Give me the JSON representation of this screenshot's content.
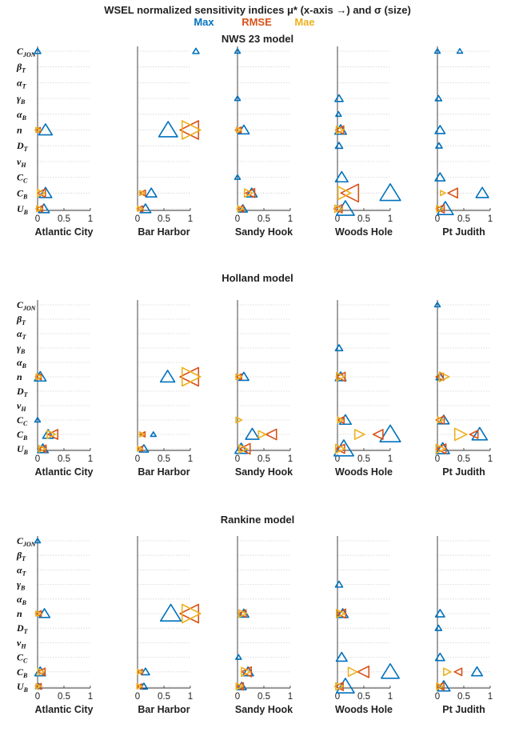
{
  "title": {
    "main": "WSEL normalized sensitivity indices μ* (x-axis →) and σ (size)",
    "legend": [
      {
        "label": "Max",
        "color": "#0072BD"
      },
      {
        "label": "RMSE",
        "color": "#D95319"
      },
      {
        "label": "Mae",
        "color": "#EDB120"
      }
    ]
  },
  "chart_data": {
    "type": "scatter",
    "parameters": [
      {
        "base": "C",
        "sub": "JON"
      },
      {
        "base": "β",
        "sub": "T"
      },
      {
        "base": "α",
        "sub": "T"
      },
      {
        "base": "γ",
        "sub": "B"
      },
      {
        "base": "α",
        "sub": "B"
      },
      {
        "base": "n",
        "sub": ""
      },
      {
        "base": "D",
        "sub": "T"
      },
      {
        "base": "ν",
        "sub": "H"
      },
      {
        "base": "C",
        "sub": "C"
      },
      {
        "base": "C",
        "sub": "B"
      },
      {
        "base": "U",
        "sub": "B"
      }
    ],
    "xlim": [
      0,
      1
    ],
    "xticks": [
      "0",
      "0.5",
      "1"
    ],
    "grid": "horizontal dotted",
    "sites": [
      "Atlantic City",
      "Bar Harbor",
      "Sandy Hook",
      "Woods Hole",
      "Pt Judith"
    ],
    "models": [
      {
        "title": "NWS 23 model",
        "panels": [
          {
            "Max": [
              [
                0,
                0,
                0.2
              ],
              [
                0,
                3,
                0.2
              ],
              [
                0,
                8,
                0.15
              ],
              [
                5,
                0.15,
                0.6
              ],
              [
                9,
                0.15,
                0.55
              ],
              [
                10,
                0.12,
                0.45
              ]
            ],
            "RMSE": [
              [
                5,
                0.01,
                0.15
              ],
              [
                9,
                0.08,
                0.35
              ],
              [
                10,
                0.04,
                0.25
              ]
            ],
            "Mae": [
              [
                5,
                0.01,
                0.15
              ],
              [
                9,
                0.06,
                0.3
              ],
              [
                10,
                0.03,
                0.2
              ]
            ]
          },
          {
            "Max": [
              [
                5,
                0.58,
                0.9
              ],
              [
                9,
                0.26,
                0.45
              ],
              [
                10,
                0.15,
                0.45
              ]
            ],
            "RMSE": [
              [
                5,
                1.0,
                1.0
              ],
              [
                9,
                0.1,
                0.2
              ],
              [
                10,
                0.05,
                0.2
              ]
            ],
            "Mae": [
              [
                5,
                1.0,
                1.0
              ],
              [
                9,
                0.08,
                0.15
              ],
              [
                10,
                0.04,
                0.15
              ]
            ]
          },
          {
            "Max": [
              [
                0,
                0,
                0.15
              ],
              [
                3,
                0,
                0.15
              ],
              [
                5,
                0.12,
                0.45
              ],
              [
                8,
                0,
                0.15
              ],
              [
                9,
                0.27,
                0.45
              ],
              [
                10,
                0.1,
                0.35
              ]
            ],
            "RMSE": [
              [
                5,
                0.02,
                0.2
              ],
              [
                9,
                0.25,
                0.4
              ],
              [
                10,
                0.06,
                0.25
              ]
            ],
            "Mae": [
              [
                5,
                0.02,
                0.15
              ],
              [
                9,
                0.2,
                0.35
              ],
              [
                10,
                0.05,
                0.2
              ]
            ]
          },
          {
            "Max": [
              [
                3,
                0.03,
                0.3
              ],
              [
                4,
                0.02,
                0.15
              ],
              [
                5,
                0.06,
                0.5
              ],
              [
                6,
                0.03,
                0.25
              ],
              [
                8,
                0.08,
                0.55
              ],
              [
                9,
                1.0,
                1.0
              ],
              [
                10,
                0.15,
                0.85
              ]
            ],
            "RMSE": [
              [
                5,
                0.05,
                0.35
              ],
              [
                9,
                0.25,
                0.95
              ],
              [
                10,
                0.02,
                0.35
              ]
            ],
            "Mae": [
              [
                5,
                0.04,
                0.3
              ],
              [
                9,
                0.12,
                0.65
              ],
              [
                10,
                0.01,
                0.3
              ]
            ]
          },
          {
            "Max": [
              [
                0,
                0,
                0.15
              ],
              [
                3,
                0.02,
                0.2
              ],
              [
                5,
                0.05,
                0.4
              ],
              [
                6,
                0.03,
                0.2
              ],
              [
                8,
                0.05,
                0.4
              ],
              [
                9,
                0.85,
                0.55
              ],
              [
                10,
                0.15,
                0.75
              ]
            ],
            "RMSE": [
              [
                9,
                0.3,
                0.45
              ],
              [
                10,
                0.06,
                0.35
              ]
            ],
            "Mae": [
              [
                9,
                0.1,
                0.15
              ],
              [
                10,
                0.04,
                0.25
              ]
            ]
          }
        ]
      },
      {
        "title": "Holland model",
        "panels": [
          {
            "Max": [
              [
                5,
                0.05,
                0.5
              ],
              [
                8,
                0,
                0.15
              ],
              [
                9,
                0.2,
                0.45
              ],
              [
                10,
                0.1,
                0.45
              ]
            ],
            "RMSE": [
              [
                5,
                0.02,
                0.2
              ],
              [
                9,
                0.3,
                0.45
              ],
              [
                10,
                0.1,
                0.3
              ]
            ],
            "Mae": [
              [
                5,
                0.02,
                0.2
              ],
              [
                9,
                0.25,
                0.35
              ],
              [
                10,
                0.08,
                0.25
              ]
            ]
          },
          {
            "Max": [
              [
                5,
                0.57,
                0.65
              ],
              [
                9,
                0.3,
                0.15
              ],
              [
                10,
                0.12,
                0.35
              ]
            ],
            "RMSE": [
              [
                5,
                1.0,
                1.0
              ],
              [
                9,
                0.1,
                0.15
              ],
              [
                10,
                0.05,
                0.15
              ]
            ],
            "Mae": [
              [
                5,
                1.0,
                1.0
              ],
              [
                9,
                0.08,
                0.15
              ],
              [
                10,
                0.04,
                0.15
              ]
            ]
          },
          {
            "Max": [
              [
                5,
                0.12,
                0.4
              ],
              [
                9,
                0.28,
                0.6
              ],
              [
                10,
                0.07,
                0.55
              ]
            ],
            "RMSE": [
              [
                5,
                0.03,
                0.2
              ],
              [
                9,
                0.65,
                0.5
              ],
              [
                10,
                0.15,
                0.5
              ]
            ],
            "Mae": [
              [
                5,
                0.02,
                0.2
              ],
              [
                8,
                0.02,
                0.2
              ],
              [
                9,
                0.46,
                0.3
              ],
              [
                10,
                0.1,
                0.35
              ]
            ]
          },
          {
            "Max": [
              [
                3,
                0.03,
                0.25
              ],
              [
                5,
                0.06,
                0.45
              ],
              [
                8,
                0.15,
                0.5
              ],
              [
                9,
                1.0,
                1.0
              ],
              [
                10,
                0.12,
                0.95
              ]
            ],
            "RMSE": [
              [
                5,
                0.07,
                0.4
              ],
              [
                8,
                0.07,
                0.25
              ],
              [
                9,
                0.78,
                0.45
              ],
              [
                10,
                0.06,
                0.4
              ]
            ],
            "Mae": [
              [
                5,
                0.05,
                0.35
              ],
              [
                8,
                0.05,
                0.2
              ],
              [
                9,
                0.41,
                0.45
              ],
              [
                10,
                0.04,
                0.4
              ]
            ]
          },
          {
            "Max": [
              [
                0,
                0,
                0.15
              ],
              [
                5,
                0.05,
                0.3
              ],
              [
                8,
                0.12,
                0.45
              ],
              [
                9,
                0.8,
                0.7
              ],
              [
                10,
                0.1,
                0.6
              ]
            ],
            "RMSE": [
              [
                5,
                0.05,
                0.3
              ],
              [
                8,
                0.06,
                0.35
              ],
              [
                9,
                0.7,
                0.35
              ],
              [
                10,
                0.08,
                0.45
              ]
            ],
            "Mae": [
              [
                5,
                0.12,
                0.45
              ],
              [
                8,
                0.05,
                0.2
              ],
              [
                9,
                0.43,
                0.6
              ],
              [
                10,
                0.05,
                0.4
              ]
            ]
          }
        ]
      },
      {
        "title": "Rankine model",
        "panels": [
          {
            "Max": [
              [
                0,
                0,
                0.15
              ],
              [
                5,
                0.13,
                0.45
              ],
              [
                9,
                0.05,
                0.45
              ],
              [
                10,
                0.02,
                0.2
              ]
            ],
            "RMSE": [
              [
                5,
                0.02,
                0.2
              ],
              [
                9,
                0.08,
                0.3
              ],
              [
                10,
                0.02,
                0.2
              ]
            ],
            "Mae": [
              [
                5,
                0.01,
                0.15
              ],
              [
                9,
                0.06,
                0.25
              ],
              [
                10,
                0.01,
                0.15
              ]
            ]
          },
          {
            "Max": [
              [
                5,
                0.63,
                1.0
              ],
              [
                9,
                0.15,
                0.3
              ],
              [
                10,
                0.12,
                0.25
              ]
            ],
            "RMSE": [
              [
                5,
                1.0,
                1.0
              ],
              [
                9,
                0.05,
                0.15
              ],
              [
                10,
                0.04,
                0.15
              ]
            ],
            "Mae": [
              [
                5,
                1.0,
                1.0
              ],
              [
                9,
                0.04,
                0.15
              ],
              [
                10,
                0.03,
                0.15
              ]
            ]
          },
          {
            "Max": [
              [
                5,
                0.12,
                0.4
              ],
              [
                8,
                0.02,
                0.15
              ],
              [
                9,
                0.2,
                0.45
              ],
              [
                10,
                0.08,
                0.35
              ]
            ],
            "RMSE": [
              [
                5,
                0.1,
                0.3
              ],
              [
                9,
                0.18,
                0.45
              ],
              [
                10,
                0.05,
                0.3
              ]
            ],
            "Mae": [
              [
                5,
                0.09,
                0.3
              ],
              [
                9,
                0.15,
                0.4
              ],
              [
                10,
                0.03,
                0.25
              ]
            ]
          },
          {
            "Max": [
              [
                3,
                0.03,
                0.25
              ],
              [
                5,
                0.1,
                0.45
              ],
              [
                8,
                0.08,
                0.45
              ],
              [
                9,
                1.0,
                0.85
              ],
              [
                10,
                0.15,
                0.85
              ]
            ],
            "RMSE": [
              [
                5,
                0.08,
                0.4
              ],
              [
                9,
                0.5,
                0.55
              ],
              [
                10,
                0.04,
                0.35
              ]
            ],
            "Mae": [
              [
                5,
                0.05,
                0.35
              ],
              [
                9,
                0.28,
                0.4
              ],
              [
                10,
                0.03,
                0.3
              ]
            ]
          },
          {
            "Max": [
              [
                5,
                0.05,
                0.35
              ],
              [
                6,
                0.02,
                0.2
              ],
              [
                8,
                0.05,
                0.35
              ],
              [
                9,
                0.75,
                0.45
              ],
              [
                10,
                0.12,
                0.55
              ]
            ],
            "RMSE": [
              [
                9,
                0.4,
                0.3
              ],
              [
                10,
                0.06,
                0.3
              ]
            ],
            "Mae": [
              [
                9,
                0.18,
                0.3
              ],
              [
                10,
                0.04,
                0.25
              ]
            ]
          }
        ]
      }
    ]
  }
}
